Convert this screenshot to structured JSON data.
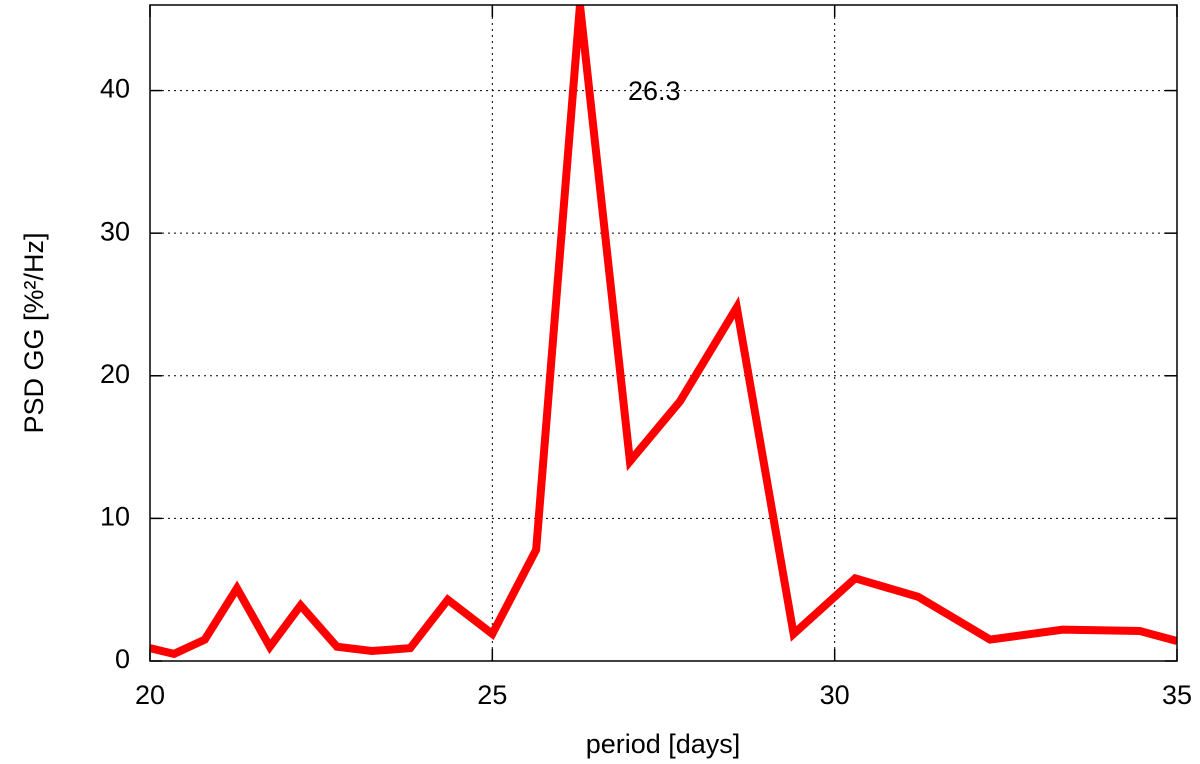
{
  "chart_data": {
    "type": "line",
    "x_label": "period [days]",
    "y_label": "PSD GG [%²/Hz]",
    "annotation": "26.3",
    "x": [
      20,
      20.35,
      20.8,
      21.27,
      21.75,
      22.2,
      22.73,
      23.24,
      23.8,
      24.35,
      25,
      25.64,
      26.28,
      27.01,
      27.74,
      28.57,
      29.4,
      30.3,
      31.22,
      32.27,
      33.33,
      34.46,
      35
    ],
    "series": [
      {
        "color": "#ff0000",
        "values": [
          0.9,
          0.5,
          1.5,
          5.1,
          1.0,
          3.9,
          1.0,
          0.7,
          0.9,
          4.3,
          1.9,
          7.8,
          46,
          14.0,
          18.2,
          24.8,
          1.9,
          5.8,
          4.5,
          1.5,
          2.2,
          2.1,
          1.4
        ]
      }
    ],
    "xlim": [
      20,
      35
    ],
    "xticks": [
      20,
      25,
      30,
      35
    ],
    "ylim": [
      0,
      46
    ],
    "yticks": [
      0,
      10,
      20,
      30,
      40
    ],
    "grid": true
  }
}
